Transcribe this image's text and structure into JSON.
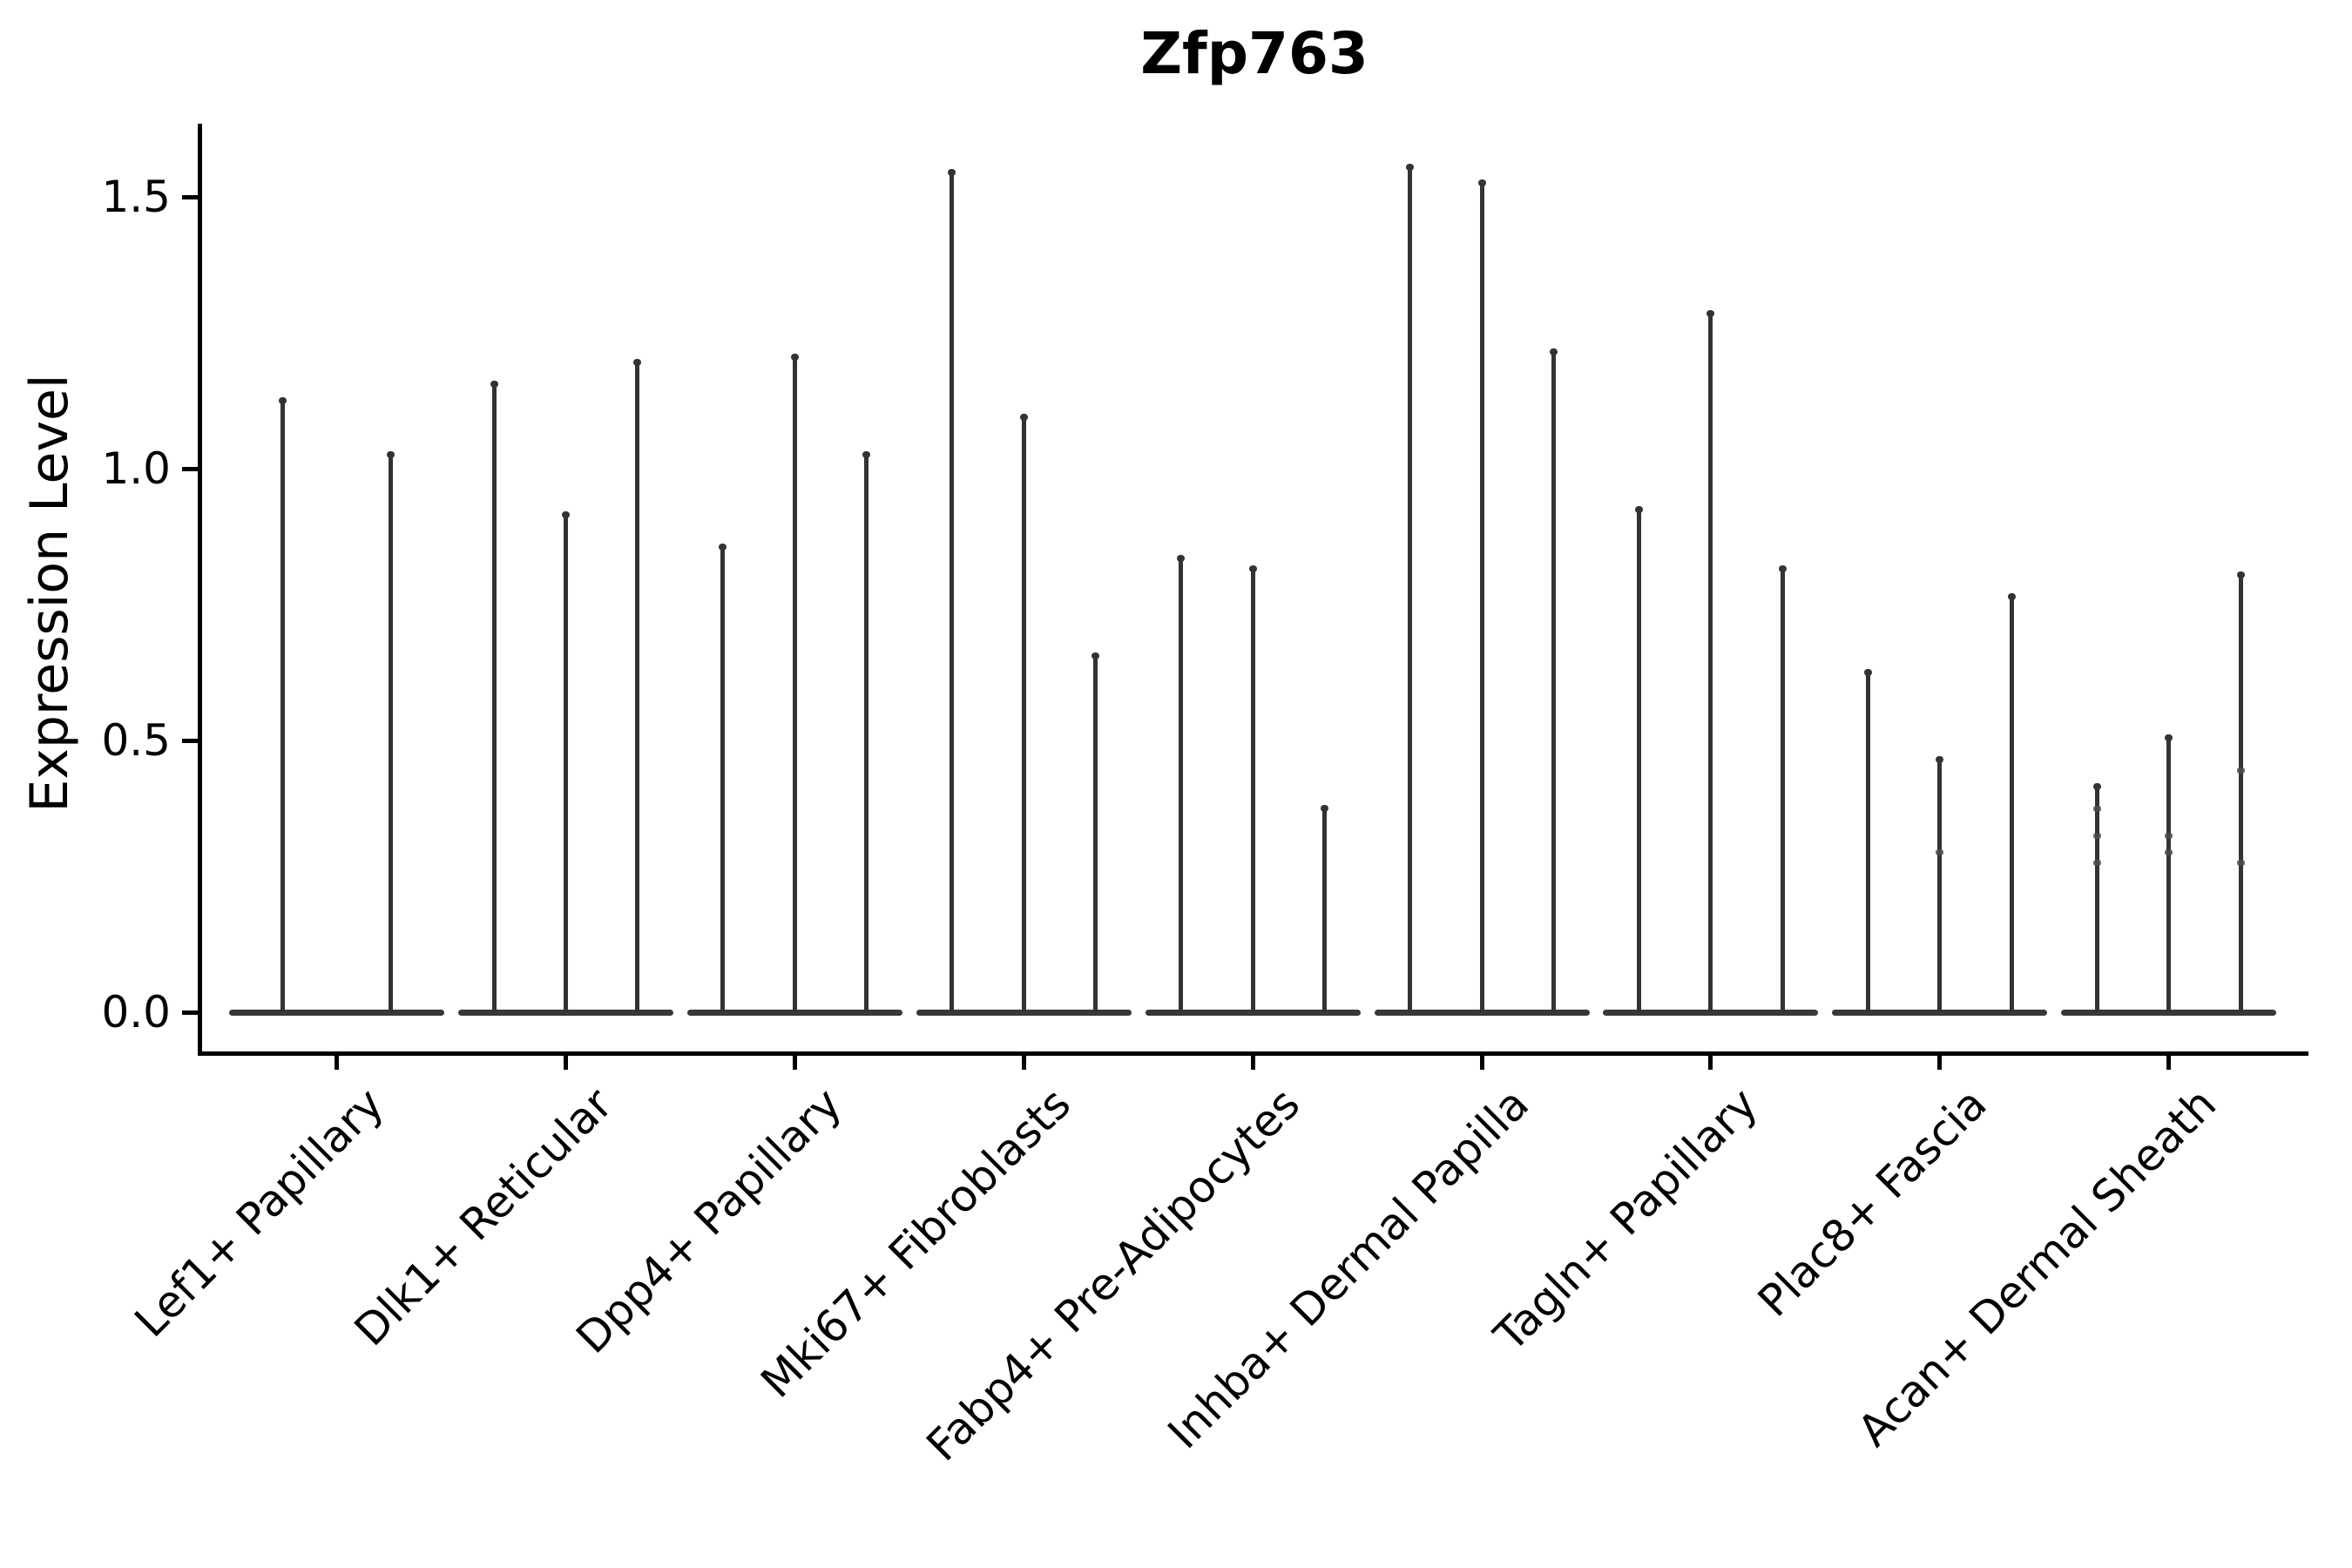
{
  "figure_title": "Zfp763",
  "chart_data": {
    "type": "violin",
    "title": "Zfp763",
    "xlabel": "",
    "ylabel": "Expression Level",
    "ylim": [
      -0.08,
      1.64
    ],
    "yticks": [
      0.0,
      0.5,
      1.0,
      1.5
    ],
    "ytick_labels": [
      "0.0",
      "0.5",
      "1.0",
      "1.5"
    ],
    "grid": false,
    "legend": "none",
    "background_color": "#ffffff",
    "violin_color": "#333333",
    "axis_color": "#000000",
    "baseline_value": 0.0,
    "categories": [
      "Lef1+ Papillary",
      "Dlk1+ Reticular",
      "Dpp4+ Papillary",
      "Mki67+ Fibroblasts",
      "Fabp4+ Pre-Adipocytes",
      "Inhba+ Dermal Papilla",
      "Tagln+ Papillary",
      "Plac8+ Fascia",
      "Acan+ Dermal Sheath"
    ],
    "groups": [
      {
        "category": "Lef1+ Papillary",
        "peaks": [
          1.13,
          1.03
        ],
        "dots": [
          [],
          []
        ]
      },
      {
        "category": "Dlk1+ Reticular",
        "peaks": [
          1.16,
          0.92,
          1.2
        ],
        "dots": [
          [],
          [],
          []
        ]
      },
      {
        "category": "Dpp4+ Papillary",
        "peaks": [
          0.86,
          1.21,
          1.03
        ],
        "dots": [
          [],
          [],
          []
        ]
      },
      {
        "category": "Mki67+ Fibroblasts",
        "peaks": [
          1.55,
          1.1,
          0.66
        ],
        "dots": [
          [],
          [],
          []
        ]
      },
      {
        "category": "Fabp4+ Pre-Adipocytes",
        "peaks": [
          0.84,
          0.82,
          0.38
        ],
        "dots": [
          [],
          [],
          []
        ]
      },
      {
        "category": "Inhba+ Dermal Papilla",
        "peaks": [
          1.56,
          1.53,
          1.22
        ],
        "dots": [
          [],
          [],
          []
        ]
      },
      {
        "category": "Tagln+ Papillary",
        "peaks": [
          0.93,
          1.29,
          0.82
        ],
        "dots": [
          [],
          [],
          []
        ]
      },
      {
        "category": "Plac8+ Fascia",
        "peaks": [
          0.63,
          0.47,
          0.77
        ],
        "dots": [
          [],
          [
            0.3
          ],
          []
        ]
      },
      {
        "category": "Acan+ Dermal Sheath",
        "peaks": [
          0.42,
          0.51,
          0.81
        ],
        "dots": [
          [
            0.38,
            0.33,
            0.28
          ],
          [
            0.33,
            0.3
          ],
          [
            0.45,
            0.28
          ]
        ]
      }
    ]
  }
}
